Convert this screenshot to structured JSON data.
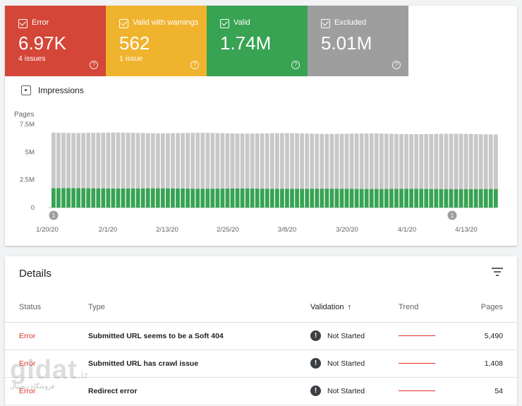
{
  "tiles": [
    {
      "label": "Error",
      "value": "6.97K",
      "sub": "4 issues",
      "color": "#d44638"
    },
    {
      "label": "Valid with warnings",
      "value": "562",
      "sub": "1 issue",
      "color": "#f0b32d"
    },
    {
      "label": "Valid",
      "value": "1.74M",
      "sub": "",
      "color": "#37a353"
    },
    {
      "label": "Excluded",
      "value": "5.01M",
      "sub": "",
      "color": "#9e9e9e"
    }
  ],
  "impressions_label": "Impressions",
  "chart_data": {
    "type": "bar",
    "stacked": true,
    "ylabel": "Pages",
    "yticks": [
      "0",
      "2.5M",
      "5M",
      "7.5M"
    ],
    "ylim": [
      0,
      7500000
    ],
    "xticks": [
      "1/20/20",
      "2/1/20",
      "2/13/20",
      "2/25/20",
      "3/8/20",
      "3/20/20",
      "4/1/20",
      "4/13/20"
    ],
    "bar_count": 90,
    "series": [
      {
        "name": "Valid",
        "color": "#37a353",
        "approx_value": 1740000
      },
      {
        "name": "Excluded",
        "color": "#c8c8c8",
        "approx_value": 5010000
      }
    ],
    "annotations": [
      {
        "label": "1",
        "position": "start"
      },
      {
        "label": "1",
        "position": "near 4/13/20"
      }
    ]
  },
  "details": {
    "title": "Details",
    "headers": {
      "status": "Status",
      "type": "Type",
      "validation": "Validation",
      "trend": "Trend",
      "pages": "Pages"
    },
    "rows": [
      {
        "status": "Error",
        "type": "Submitted URL seems to be a Soft 404",
        "validation": "Not Started",
        "pages": "5,490"
      },
      {
        "status": "Error",
        "type": "Submitted URL has crawl issue",
        "validation": "Not Started",
        "pages": "1,408"
      },
      {
        "status": "Error",
        "type": "Redirect error",
        "validation": "Not Started",
        "pages": "54"
      }
    ]
  },
  "watermark": {
    "logo": "gidat",
    "tld": ".ir",
    "text": "فروشگاه دیجیتال"
  }
}
